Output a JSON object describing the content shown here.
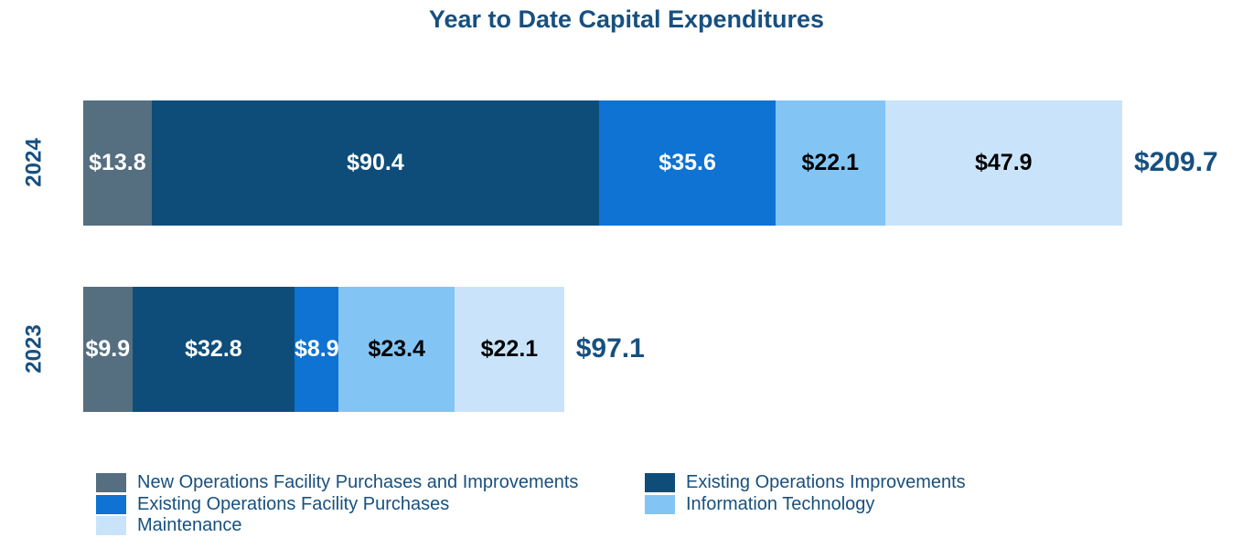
{
  "title": "Year to Date Capital Expenditures",
  "text_color": "#17507F",
  "chart_data": {
    "type": "bar",
    "orientation": "horizontal",
    "stacked": true,
    "title": "Year to Date Capital Expenditures",
    "categories": [
      "2024",
      "2023"
    ],
    "series": [
      {
        "name": "New Operations Facility Purchases and Improvements",
        "color": "#556E80",
        "label_color": "#ffffff",
        "values": [
          13.8,
          9.9
        ]
      },
      {
        "name": "Existing Operations Improvements",
        "color": "#0E4D7A",
        "label_color": "#ffffff",
        "values": [
          90.4,
          32.8
        ]
      },
      {
        "name": "Existing Operations Facility Purchases",
        "color": "#0E73D2",
        "label_color": "#ffffff",
        "values": [
          35.6,
          8.9
        ]
      },
      {
        "name": "Information Technology",
        "color": "#82C5F5",
        "label_color": "#000000",
        "values": [
          22.1,
          23.4
        ]
      },
      {
        "name": "Maintenance",
        "color": "#C9E4FA",
        "label_color": "#000000",
        "values": [
          47.9,
          22.1
        ]
      }
    ],
    "segment_labels": [
      [
        "$13.8",
        "$90.4",
        "$35.6",
        "$22.1",
        "$47.9"
      ],
      [
        "$9.9",
        "$32.8",
        "$8.9",
        "$23.4",
        "$22.1"
      ]
    ],
    "totals": [
      "$209.7",
      "$97.1"
    ],
    "legend_position": "bottom",
    "legend_columns": [
      [
        0,
        2,
        4
      ],
      [
        1,
        3
      ]
    ],
    "grid": false,
    "axis_labels_rotated": true
  }
}
